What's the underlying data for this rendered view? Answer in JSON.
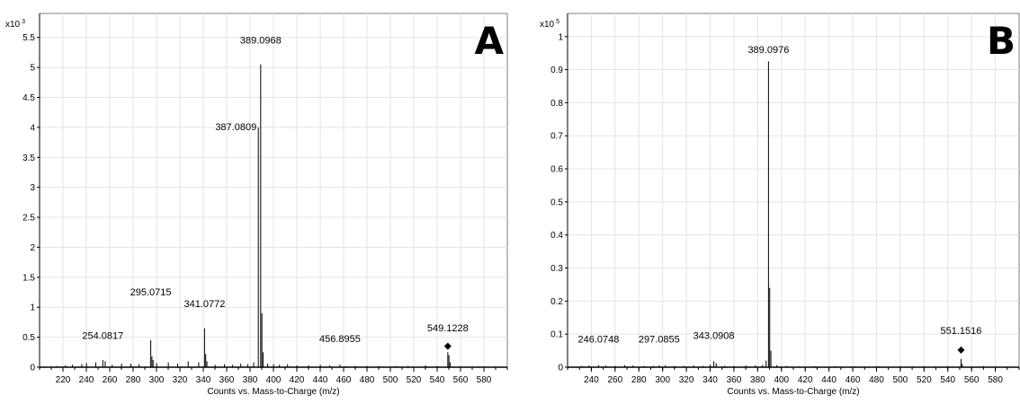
{
  "chart_data": [
    {
      "type": "bar",
      "panel_label": "A",
      "scale_label": "x10",
      "scale_exponent": "3",
      "xlabel": "Counts vs. Mass-to-Charge (m/z)",
      "ylabel": "",
      "xlim": [
        200,
        600
      ],
      "ylim": [
        0,
        5.9
      ],
      "x_ticks": [
        220,
        240,
        260,
        280,
        300,
        320,
        340,
        360,
        380,
        400,
        420,
        440,
        460,
        480,
        500,
        520,
        540,
        560,
        580
      ],
      "y_ticks": [
        0,
        0.5,
        1,
        1.5,
        2,
        2.5,
        3,
        3.5,
        4,
        4.5,
        5,
        5.5
      ],
      "y_tick_labels": [
        "0",
        "0.5",
        "1",
        "1.5",
        "2",
        "2.5",
        "3",
        "3.5",
        "4",
        "4.5",
        "5",
        "5.5"
      ],
      "grid": true,
      "peaks": [
        {
          "mz": 389.0968,
          "intensity": 5.05
        },
        {
          "mz": 387.0809,
          "intensity": 4.0
        },
        {
          "mz": 390.1,
          "intensity": 0.9
        },
        {
          "mz": 391.1,
          "intensity": 0.25
        },
        {
          "mz": 341.0772,
          "intensity": 0.65
        },
        {
          "mz": 342.08,
          "intensity": 0.22
        },
        {
          "mz": 343.1,
          "intensity": 0.1
        },
        {
          "mz": 295.0715,
          "intensity": 0.45
        },
        {
          "mz": 296.08,
          "intensity": 0.18
        },
        {
          "mz": 297.08,
          "intensity": 0.12
        },
        {
          "mz": 254.0817,
          "intensity": 0.12
        },
        {
          "mz": 256.1,
          "intensity": 0.1
        },
        {
          "mz": 549.1228,
          "intensity": 0.25
        },
        {
          "mz": 550.1,
          "intensity": 0.2
        },
        {
          "mz": 551.1,
          "intensity": 0.08
        },
        {
          "mz": 456.8955,
          "intensity": 0.04
        },
        {
          "mz": 336.1,
          "intensity": 0.08
        },
        {
          "mz": 327.1,
          "intensity": 0.1
        },
        {
          "mz": 318.1,
          "intensity": 0.06
        },
        {
          "mz": 310.1,
          "intensity": 0.08
        },
        {
          "mz": 300.1,
          "intensity": 0.07
        },
        {
          "mz": 285.1,
          "intensity": 0.05
        },
        {
          "mz": 278.1,
          "intensity": 0.06
        },
        {
          "mz": 270.1,
          "intensity": 0.06
        },
        {
          "mz": 262.1,
          "intensity": 0.04
        },
        {
          "mz": 248.1,
          "intensity": 0.08
        },
        {
          "mz": 240.1,
          "intensity": 0.07
        },
        {
          "mz": 236.1,
          "intensity": 0.05
        },
        {
          "mz": 228.1,
          "intensity": 0.04
        },
        {
          "mz": 222.1,
          "intensity": 0.03
        },
        {
          "mz": 215.1,
          "intensity": 0.02
        },
        {
          "mz": 350.1,
          "intensity": 0.04
        },
        {
          "mz": 358.1,
          "intensity": 0.05
        },
        {
          "mz": 365.1,
          "intensity": 0.04
        },
        {
          "mz": 372.1,
          "intensity": 0.06
        },
        {
          "mz": 378.1,
          "intensity": 0.05
        },
        {
          "mz": 383.1,
          "intensity": 0.08
        },
        {
          "mz": 395.1,
          "intensity": 0.06
        },
        {
          "mz": 400.1,
          "intensity": 0.05
        },
        {
          "mz": 405.1,
          "intensity": 0.04
        },
        {
          "mz": 412.1,
          "intensity": 0.05
        },
        {
          "mz": 420.1,
          "intensity": 0.03
        },
        {
          "mz": 430.1,
          "intensity": 0.03
        },
        {
          "mz": 440.1,
          "intensity": 0.04
        },
        {
          "mz": 448.1,
          "intensity": 0.03
        },
        {
          "mz": 462.1,
          "intensity": 0.02
        },
        {
          "mz": 470.1,
          "intensity": 0.02
        },
        {
          "mz": 480.1,
          "intensity": 0.02
        },
        {
          "mz": 490.1,
          "intensity": 0.02
        },
        {
          "mz": 505.1,
          "intensity": 0.02
        },
        {
          "mz": 515.1,
          "intensity": 0.02
        },
        {
          "mz": 530.1,
          "intensity": 0.03
        },
        {
          "mz": 540.1,
          "intensity": 0.02
        },
        {
          "mz": 560.1,
          "intensity": 0.01
        },
        {
          "mz": 575.1,
          "intensity": 0.01
        }
      ],
      "peak_labels": [
        {
          "mz": 389.0968,
          "text": "389.0968",
          "label_y": 5.4
        },
        {
          "mz": 387.0809,
          "text": "387.0809",
          "label_y": 3.95,
          "anchor": "end"
        },
        {
          "mz": 341.0772,
          "text": "341.0772",
          "label_y": 1.0
        },
        {
          "mz": 295.0715,
          "text": "295.0715",
          "label_y": 1.2
        },
        {
          "mz": 254.0817,
          "text": "254.0817",
          "label_y": 0.47
        },
        {
          "mz": 456.8955,
          "text": "456.8955",
          "label_y": 0.42
        },
        {
          "mz": 549.1228,
          "text": "549.1228",
          "label_y": 0.6
        }
      ],
      "precursor": {
        "mz": 549.1228,
        "intensity": 0.35
      }
    },
    {
      "type": "bar",
      "panel_label": "B",
      "scale_label": "x10",
      "scale_exponent": "5",
      "xlabel": "Counts vs. Mass-to-Charge (m/z)",
      "ylabel": "",
      "xlim": [
        220,
        600
      ],
      "ylim": [
        0,
        1.07
      ],
      "x_ticks": [
        240,
        260,
        280,
        300,
        320,
        340,
        360,
        380,
        400,
        420,
        440,
        460,
        480,
        500,
        520,
        540,
        560,
        580
      ],
      "y_ticks": [
        0,
        0.1,
        0.2,
        0.3,
        0.4,
        0.5,
        0.6,
        0.7,
        0.8,
        0.9,
        1
      ],
      "y_tick_labels": [
        "0",
        "0.1",
        "0.2",
        "0.3",
        "0.4",
        "0.5",
        "0.6",
        "0.7",
        "0.8",
        "0.9",
        "1"
      ],
      "grid": true,
      "peaks": [
        {
          "mz": 389.0976,
          "intensity": 0.925
        },
        {
          "mz": 390.1,
          "intensity": 0.24
        },
        {
          "mz": 391.1,
          "intensity": 0.05
        },
        {
          "mz": 387.1,
          "intensity": 0.02
        },
        {
          "mz": 343.0908,
          "intensity": 0.018
        },
        {
          "mz": 345.1,
          "intensity": 0.012
        },
        {
          "mz": 297.0855,
          "intensity": 0.006
        },
        {
          "mz": 246.0748,
          "intensity": 0.006
        },
        {
          "mz": 551.1516,
          "intensity": 0.025
        },
        {
          "mz": 552.1,
          "intensity": 0.01
        },
        {
          "mz": 232.1,
          "intensity": 0.004
        },
        {
          "mz": 238.1,
          "intensity": 0.005
        },
        {
          "mz": 252.1,
          "intensity": 0.005
        },
        {
          "mz": 260.1,
          "intensity": 0.004
        },
        {
          "mz": 268.1,
          "intensity": 0.006
        },
        {
          "mz": 275.1,
          "intensity": 0.005
        },
        {
          "mz": 284.1,
          "intensity": 0.004
        },
        {
          "mz": 292.1,
          "intensity": 0.004
        },
        {
          "mz": 302.1,
          "intensity": 0.005
        },
        {
          "mz": 310.1,
          "intensity": 0.004
        },
        {
          "mz": 318.1,
          "intensity": 0.004
        },
        {
          "mz": 326.1,
          "intensity": 0.005
        },
        {
          "mz": 334.1,
          "intensity": 0.004
        },
        {
          "mz": 340.1,
          "intensity": 0.008
        },
        {
          "mz": 352.1,
          "intensity": 0.004
        },
        {
          "mz": 360.1,
          "intensity": 0.004
        },
        {
          "mz": 370.1,
          "intensity": 0.005
        },
        {
          "mz": 378.1,
          "intensity": 0.006
        },
        {
          "mz": 384.1,
          "intensity": 0.007
        },
        {
          "mz": 396.1,
          "intensity": 0.006
        },
        {
          "mz": 404.1,
          "intensity": 0.004
        },
        {
          "mz": 415.1,
          "intensity": 0.003
        },
        {
          "mz": 428.1,
          "intensity": 0.003
        },
        {
          "mz": 445.1,
          "intensity": 0.003
        },
        {
          "mz": 462.1,
          "intensity": 0.002
        },
        {
          "mz": 482.1,
          "intensity": 0.002
        },
        {
          "mz": 500.1,
          "intensity": 0.002
        },
        {
          "mz": 520.1,
          "intensity": 0.002
        },
        {
          "mz": 540.1,
          "intensity": 0.002
        },
        {
          "mz": 570.1,
          "intensity": 0.001
        }
      ],
      "peak_labels": [
        {
          "mz": 389.0976,
          "text": "389.0976",
          "label_y": 0.95
        },
        {
          "mz": 343.0908,
          "text": "343.0908",
          "label_y": 0.085
        },
        {
          "mz": 297.0855,
          "text": "297.0855",
          "label_y": 0.075
        },
        {
          "mz": 246.0748,
          "text": "246.0748",
          "label_y": 0.075
        },
        {
          "mz": 551.1516,
          "text": "551.1516",
          "label_y": 0.1
        }
      ],
      "precursor": {
        "mz": 551.1516,
        "intensity": 0.052
      }
    }
  ]
}
